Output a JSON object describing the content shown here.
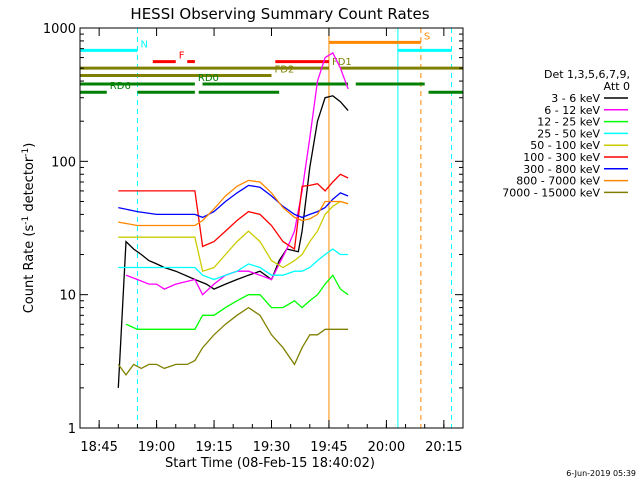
{
  "chart_data": {
    "type": "line",
    "title": "HESSI Observing Summary Count Rates",
    "xlabel": "Start Time (08-Feb-15 18:40:02)",
    "ylabel": "Count Rate (s",
    "ylabel_sup": "-1",
    "ylabel_tail": " detector",
    "ylabel_close": ")",
    "y_scale": "log",
    "xlim": [
      "18:40",
      "20:20"
    ],
    "ylim": [
      1,
      1000
    ],
    "x_ticks": [
      "18:45",
      "19:00",
      "19:15",
      "19:30",
      "19:45",
      "20:00",
      "20:15"
    ],
    "y_ticks": [
      "1",
      "10",
      "100",
      "1000"
    ],
    "legend_title": [
      "Det 1,3,5,6,7,9,",
      "Att 0"
    ],
    "legend_position": "right",
    "footer": "6-Jun-2019 05:39",
    "series": [
      {
        "name": "3 - 6 keV",
        "color": "#000000",
        "points": [
          [
            "18:50",
            2
          ],
          [
            "18:52",
            25
          ],
          [
            "18:54",
            22
          ],
          [
            "18:56",
            20
          ],
          [
            "18:58",
            18
          ],
          [
            "19:00",
            17
          ],
          [
            "19:02",
            16
          ],
          [
            "19:05",
            15
          ],
          [
            "19:10",
            13
          ],
          [
            "19:13",
            12
          ],
          [
            "19:15",
            11
          ],
          [
            "19:18",
            12
          ],
          [
            "19:21",
            13
          ],
          [
            "19:24",
            14
          ],
          [
            "19:27",
            15
          ],
          [
            "19:30",
            13
          ],
          [
            "19:32",
            18
          ],
          [
            "19:34",
            22
          ],
          [
            "19:37",
            21
          ],
          [
            "19:38",
            30
          ],
          [
            "19:40",
            90
          ],
          [
            "19:42",
            200
          ],
          [
            "19:44",
            300
          ],
          [
            "19:46",
            310
          ],
          [
            "19:48",
            280
          ],
          [
            "19:50",
            240
          ]
        ]
      },
      {
        "name": "6 - 12 keV",
        "color": "#ff00ff",
        "points": [
          [
            "18:52",
            14
          ],
          [
            "18:55",
            13
          ],
          [
            "18:58",
            12
          ],
          [
            "19:00",
            12
          ],
          [
            "19:02",
            11
          ],
          [
            "19:05",
            12
          ],
          [
            "19:10",
            13
          ],
          [
            "19:12",
            10
          ],
          [
            "19:15",
            12
          ],
          [
            "19:18",
            14
          ],
          [
            "19:21",
            15
          ],
          [
            "19:24",
            15
          ],
          [
            "19:27",
            14
          ],
          [
            "19:30",
            13
          ],
          [
            "19:32",
            17
          ],
          [
            "19:34",
            22
          ],
          [
            "19:36",
            30
          ],
          [
            "19:38",
            60
          ],
          [
            "19:40",
            150
          ],
          [
            "19:42",
            400
          ],
          [
            "19:44",
            600
          ],
          [
            "19:46",
            650
          ],
          [
            "19:48",
            500
          ],
          [
            "19:50",
            350
          ]
        ]
      },
      {
        "name": "12 - 25 keV",
        "color": "#00ff00",
        "points": [
          [
            "18:52",
            6
          ],
          [
            "18:55",
            5.5
          ],
          [
            "18:58",
            5.5
          ],
          [
            "19:00",
            5.5
          ],
          [
            "19:05",
            5.5
          ],
          [
            "19:10",
            5.5
          ],
          [
            "19:12",
            7
          ],
          [
            "19:15",
            7
          ],
          [
            "19:18",
            8
          ],
          [
            "19:21",
            9
          ],
          [
            "19:24",
            10
          ],
          [
            "19:27",
            10
          ],
          [
            "19:30",
            8
          ],
          [
            "19:33",
            8
          ],
          [
            "19:36",
            9
          ],
          [
            "19:38",
            8
          ],
          [
            "19:40",
            9
          ],
          [
            "19:42",
            10
          ],
          [
            "19:44",
            12
          ],
          [
            "19:46",
            14
          ],
          [
            "19:48",
            11
          ],
          [
            "19:50",
            10
          ]
        ]
      },
      {
        "name": "25 - 50 keV",
        "color": "#00ffff",
        "points": [
          [
            "18:50",
            16
          ],
          [
            "18:55",
            16
          ],
          [
            "19:00",
            16
          ],
          [
            "19:05",
            16
          ],
          [
            "19:10",
            16
          ],
          [
            "19:12",
            14
          ],
          [
            "19:15",
            13
          ],
          [
            "19:18",
            14
          ],
          [
            "19:21",
            15
          ],
          [
            "19:24",
            17
          ],
          [
            "19:27",
            16
          ],
          [
            "19:30",
            14
          ],
          [
            "19:33",
            14
          ],
          [
            "19:36",
            15
          ],
          [
            "19:38",
            15
          ],
          [
            "19:40",
            16
          ],
          [
            "19:42",
            18
          ],
          [
            "19:44",
            20
          ],
          [
            "19:46",
            22
          ],
          [
            "19:48",
            20
          ],
          [
            "19:50",
            20
          ]
        ]
      },
      {
        "name": "50 - 100 keV",
        "color": "#cccc00",
        "points": [
          [
            "18:50",
            27
          ],
          [
            "18:55",
            27
          ],
          [
            "19:00",
            27
          ],
          [
            "19:05",
            27
          ],
          [
            "19:10",
            27
          ],
          [
            "19:12",
            15
          ],
          [
            "19:15",
            16
          ],
          [
            "19:18",
            20
          ],
          [
            "19:21",
            25
          ],
          [
            "19:24",
            30
          ],
          [
            "19:27",
            25
          ],
          [
            "19:30",
            18
          ],
          [
            "19:33",
            16
          ],
          [
            "19:36",
            18
          ],
          [
            "19:38",
            20
          ],
          [
            "19:40",
            25
          ],
          [
            "19:42",
            30
          ],
          [
            "19:44",
            40
          ],
          [
            "19:46",
            46
          ],
          [
            "19:48",
            50
          ],
          [
            "19:50",
            48
          ]
        ]
      },
      {
        "name": "100 - 300 keV",
        "color": "#ff0000",
        "points": [
          [
            "18:50",
            60
          ],
          [
            "18:55",
            60
          ],
          [
            "19:00",
            60
          ],
          [
            "19:05",
            60
          ],
          [
            "19:10",
            60
          ],
          [
            "19:12",
            23
          ],
          [
            "19:15",
            25
          ],
          [
            "19:18",
            30
          ],
          [
            "19:21",
            36
          ],
          [
            "19:24",
            42
          ],
          [
            "19:27",
            40
          ],
          [
            "19:30",
            33
          ],
          [
            "19:33",
            25
          ],
          [
            "19:36",
            22
          ],
          [
            "19:38",
            65
          ],
          [
            "19:40",
            66
          ],
          [
            "19:42",
            68
          ],
          [
            "19:44",
            60
          ],
          [
            "19:46",
            70
          ],
          [
            "19:48",
            80
          ],
          [
            "19:50",
            75
          ]
        ]
      },
      {
        "name": "300 - 800 keV",
        "color": "#0000ff",
        "points": [
          [
            "18:50",
            45
          ],
          [
            "18:55",
            42
          ],
          [
            "19:00",
            40
          ],
          [
            "19:05",
            40
          ],
          [
            "19:10",
            40
          ],
          [
            "19:12",
            38
          ],
          [
            "19:15",
            42
          ],
          [
            "19:18",
            50
          ],
          [
            "19:21",
            58
          ],
          [
            "19:24",
            66
          ],
          [
            "19:27",
            64
          ],
          [
            "19:30",
            55
          ],
          [
            "19:33",
            46
          ],
          [
            "19:36",
            40
          ],
          [
            "19:38",
            38
          ],
          [
            "19:40",
            40
          ],
          [
            "19:42",
            42
          ],
          [
            "19:44",
            45
          ],
          [
            "19:46",
            52
          ],
          [
            "19:48",
            58
          ],
          [
            "19:50",
            55
          ]
        ]
      },
      {
        "name": "800 - 7000 keV",
        "color": "#ff8800",
        "points": [
          [
            "18:50",
            35
          ],
          [
            "18:55",
            33
          ],
          [
            "19:00",
            33
          ],
          [
            "19:05",
            33
          ],
          [
            "19:10",
            33
          ],
          [
            "19:12",
            36
          ],
          [
            "19:15",
            44
          ],
          [
            "19:18",
            55
          ],
          [
            "19:21",
            65
          ],
          [
            "19:24",
            72
          ],
          [
            "19:27",
            70
          ],
          [
            "19:30",
            58
          ],
          [
            "19:33",
            45
          ],
          [
            "19:36",
            38
          ],
          [
            "19:38",
            36
          ],
          [
            "19:40",
            37
          ],
          [
            "19:42",
            40
          ],
          [
            "19:44",
            50
          ],
          [
            "19:46",
            50
          ],
          [
            "19:48",
            50
          ],
          [
            "19:50",
            48
          ]
        ]
      },
      {
        "name": "7000 - 15000 keV",
        "color": "#808000",
        "points": [
          [
            "18:50",
            3
          ],
          [
            "18:52",
            2.5
          ],
          [
            "18:54",
            3
          ],
          [
            "18:56",
            2.8
          ],
          [
            "18:58",
            3
          ],
          [
            "19:00",
            3
          ],
          [
            "19:02",
            2.8
          ],
          [
            "19:05",
            3
          ],
          [
            "19:08",
            3
          ],
          [
            "19:10",
            3.2
          ],
          [
            "19:12",
            4
          ],
          [
            "19:15",
            5
          ],
          [
            "19:18",
            6
          ],
          [
            "19:21",
            7
          ],
          [
            "19:24",
            8
          ],
          [
            "19:27",
            7
          ],
          [
            "19:30",
            5
          ],
          [
            "19:33",
            4
          ],
          [
            "19:36",
            3
          ],
          [
            "19:38",
            4
          ],
          [
            "19:40",
            5
          ],
          [
            "19:42",
            5
          ],
          [
            "19:44",
            5.5
          ],
          [
            "19:46",
            5.5
          ],
          [
            "19:48",
            5.5
          ],
          [
            "19:50",
            5.5
          ]
        ]
      }
    ],
    "flags": [
      {
        "label": "N",
        "color": "#00ffff",
        "y": 680,
        "segments": [
          [
            "18:40",
            "18:55"
          ],
          [
            "20:03",
            "20:17"
          ]
        ]
      },
      {
        "label": "F",
        "color": "#ff0000",
        "y": 560,
        "segments": [
          [
            "18:59",
            "19:05"
          ],
          [
            "19:08",
            "19:10"
          ],
          [
            "19:31",
            "19:45"
          ]
        ]
      },
      {
        "label": "S",
        "color": "#ff8800",
        "y": 780,
        "segments": [
          [
            "19:45",
            "20:09"
          ]
        ]
      },
      {
        "label": "FD1",
        "color": "#808000",
        "y": 500,
        "segments": [
          [
            "18:40",
            "19:45"
          ],
          [
            "19:48",
            "20:20"
          ]
        ]
      },
      {
        "label": "FD2",
        "color": "#808000",
        "y": 440,
        "segments": [
          [
            "18:40",
            "19:30"
          ]
        ]
      },
      {
        "label": "RD0",
        "color": "#008000",
        "y": 380,
        "segments": [
          [
            "18:40",
            "19:10"
          ],
          [
            "19:12",
            "19:50"
          ],
          [
            "19:52",
            "20:10"
          ]
        ]
      },
      {
        "label": "RD6",
        "color": "#008000",
        "y": 330,
        "segments": [
          [
            "18:40",
            "18:47"
          ],
          [
            "18:55",
            "19:10"
          ],
          [
            "19:11",
            "19:32"
          ],
          [
            "20:11",
            "20:20"
          ]
        ]
      }
    ],
    "vlines": [
      {
        "x": "18:40",
        "color": "#00ffff",
        "style": "solid"
      },
      {
        "x": "18:55",
        "color": "#00ffff",
        "style": "dashed"
      },
      {
        "x": "19:45",
        "color": "#ff8800",
        "style": "solid"
      },
      {
        "x": "20:03",
        "color": "#00ffff",
        "style": "solid"
      },
      {
        "x": "20:09",
        "color": "#ff8800",
        "style": "dashed"
      },
      {
        "x": "20:17",
        "color": "#00ffff",
        "style": "dashed"
      }
    ]
  }
}
